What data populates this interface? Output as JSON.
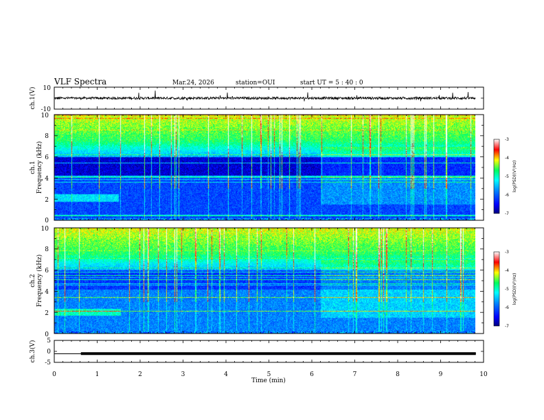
{
  "header": {
    "title": "VLF Spectra",
    "date": "Mar.24, 2026",
    "station": "station=OUI",
    "start": "start  UT  =   5 : 40 : 0"
  },
  "colors": {
    "spectrum_low": "#00008b",
    "spectrum_mid": "#00ff80",
    "spectrum_high": "#ff0000",
    "trace": "#000000"
  },
  "chart_data": [
    {
      "type": "line",
      "panel": "ch1-waveform",
      "ylabel": "ch.1(V)",
      "ylim": [
        -10,
        10
      ],
      "yticks": [
        "10",
        "-10"
      ],
      "baseline_v": 0
    },
    {
      "type": "heatmap",
      "panel": "ch1-spectrogram",
      "ylabel_top": "ch.1",
      "ylabel": "Frequency (kHz)",
      "ylim": [
        0,
        10
      ],
      "yticks": [
        "0",
        "2",
        "4",
        "6",
        "8",
        "10"
      ],
      "colorbar": {
        "label": "log(PSD)(V²/Hz)",
        "range": [
          -7,
          -3
        ],
        "ticks": [
          "-3",
          "-4",
          "-5",
          "-6",
          "-7"
        ]
      }
    },
    {
      "type": "heatmap",
      "panel": "ch2-spectrogram",
      "ylabel_top": "ch.2",
      "ylabel": "Frequency (kHz)",
      "ylim": [
        0,
        10
      ],
      "yticks": [
        "0",
        "2",
        "4",
        "6",
        "8",
        "10"
      ],
      "colorbar": {
        "label": "log(PSD)(V²/Hz)",
        "range": [
          -7,
          -3
        ],
        "ticks": [
          "-3",
          "-4",
          "-5",
          "-6",
          "-7"
        ]
      }
    },
    {
      "type": "line",
      "panel": "ch3-waveform",
      "ylabel": "ch.3(V)",
      "ylim": [
        -5,
        5
      ],
      "yticks": [
        "5",
        "0",
        "-5"
      ],
      "x": [
        0,
        0.62,
        0.62,
        9.82
      ],
      "y": [
        -1.1,
        -1.1,
        -1.0,
        -1.0
      ]
    }
  ],
  "xaxis": {
    "label": "Time  (min)",
    "range": [
      0,
      10
    ],
    "ticks": [
      "0",
      "1",
      "2",
      "3",
      "4",
      "5",
      "6",
      "7",
      "8",
      "9",
      "10"
    ]
  }
}
